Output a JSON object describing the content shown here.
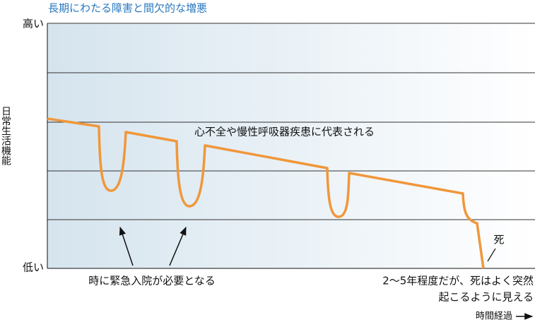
{
  "header": {
    "title": "長期にわたる障害と間欠的な増悪"
  },
  "axes": {
    "y_high": "高い",
    "y_low": "低い",
    "y_label": "日常生活機能",
    "x_label": "時間経過"
  },
  "annotations": {
    "disease": "心不全や慢性呼吸器疾患に代表される",
    "admission": "時に緊急入院が必要となる",
    "death": "死",
    "sudden": [
      "2〜5年程度だが、死はよく突然",
      "起こるように見える"
    ]
  }
}
